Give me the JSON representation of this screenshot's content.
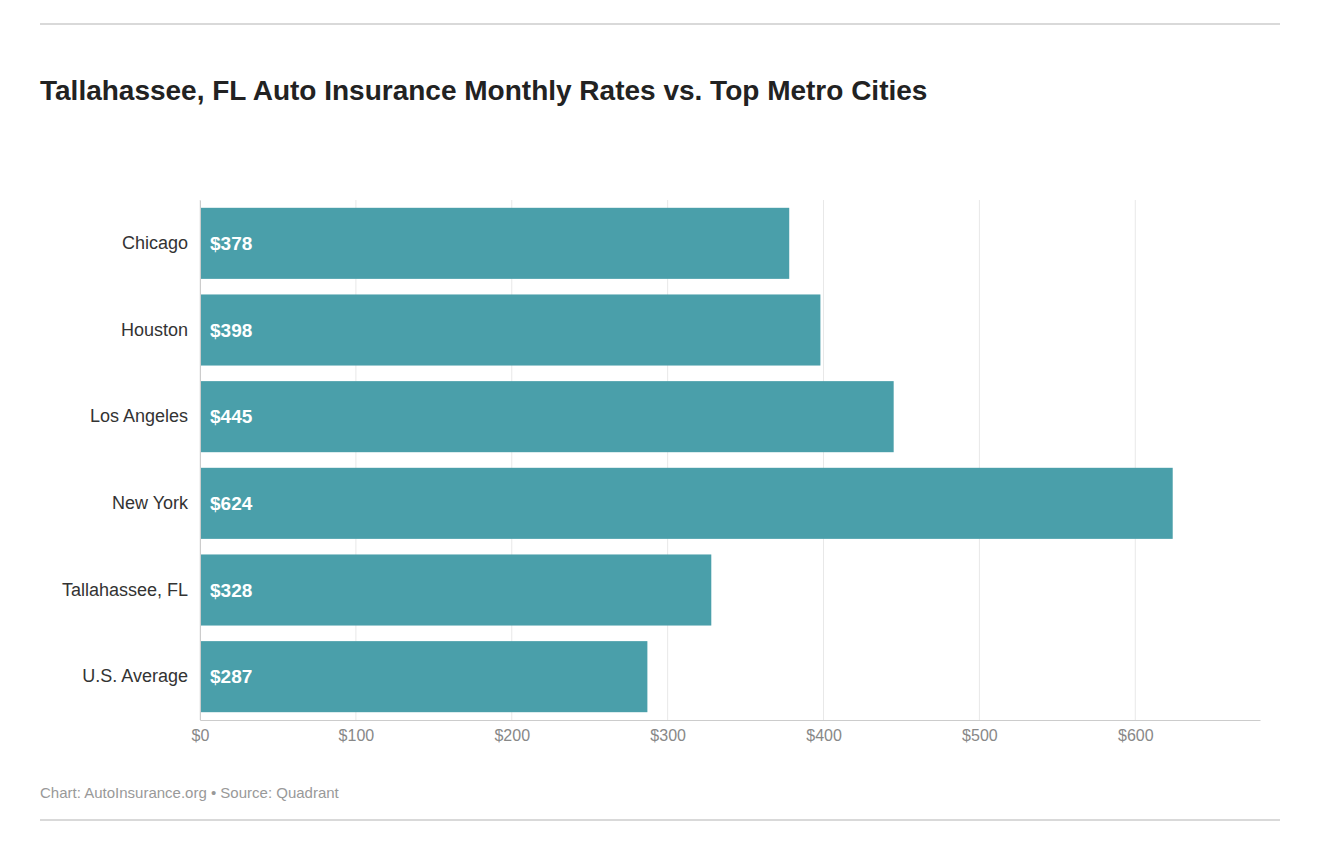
{
  "chart_data": {
    "type": "bar",
    "orientation": "horizontal",
    "title": "Tallahassee, FL Auto Insurance Monthly Rates vs. Top Metro Cities",
    "caption": "Chart: AutoInsurance.org • Source: Quadrant",
    "categories": [
      "Chicago",
      "Houston",
      "Los Angeles",
      "New York",
      "Tallahassee, FL",
      "U.S. Average"
    ],
    "values": [
      378,
      398,
      445,
      624,
      328,
      287
    ],
    "value_labels": [
      "$378",
      "$398",
      "$445",
      "$624",
      "$328",
      "$287"
    ],
    "data_labels": true,
    "color": "#4a9faa",
    "xlim": [
      0,
      680
    ],
    "xticks": [
      {
        "value": 0,
        "label": "$0"
      },
      {
        "value": 100,
        "label": "$100"
      },
      {
        "value": 200,
        "label": "$200"
      },
      {
        "value": 300,
        "label": "$300"
      },
      {
        "value": 400,
        "label": "$400"
      },
      {
        "value": 500,
        "label": "$500"
      },
      {
        "value": 600,
        "label": "$600"
      }
    ],
    "grid": true
  }
}
